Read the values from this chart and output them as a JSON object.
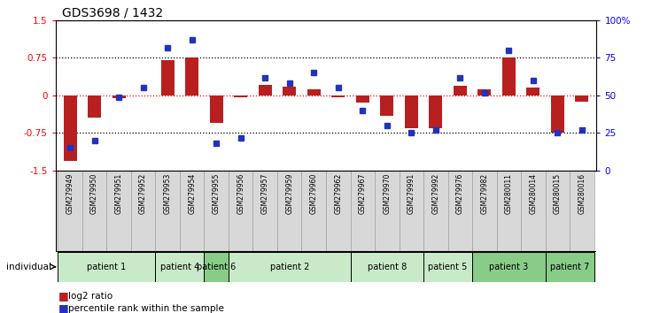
{
  "title": "GDS3698 / 1432",
  "samples": [
    "GSM279949",
    "GSM279950",
    "GSM279951",
    "GSM279952",
    "GSM279953",
    "GSM279954",
    "GSM279955",
    "GSM279956",
    "GSM279957",
    "GSM279959",
    "GSM279960",
    "GSM279962",
    "GSM279967",
    "GSM279970",
    "GSM279991",
    "GSM279992",
    "GSM279976",
    "GSM279982",
    "GSM280011",
    "GSM280014",
    "GSM280015",
    "GSM280016"
  ],
  "log2_ratio": [
    -1.3,
    -0.45,
    -0.05,
    0.0,
    0.7,
    0.75,
    -0.55,
    -0.03,
    0.22,
    0.18,
    0.12,
    -0.04,
    -0.15,
    -0.4,
    -0.65,
    -0.65,
    0.2,
    0.12,
    0.75,
    0.15,
    -0.75,
    -0.12
  ],
  "percentile": [
    15,
    20,
    49,
    55,
    82,
    87,
    18,
    22,
    62,
    58,
    65,
    55,
    40,
    30,
    25,
    27,
    62,
    52,
    80,
    60,
    25,
    27
  ],
  "patients": [
    {
      "label": "patient 1",
      "start": 0,
      "end": 4,
      "color": "#c8eac8"
    },
    {
      "label": "patient 4",
      "start": 4,
      "end": 6,
      "color": "#c8eac8"
    },
    {
      "label": "patient 6",
      "start": 6,
      "end": 7,
      "color": "#88cc88"
    },
    {
      "label": "patient 2",
      "start": 7,
      "end": 12,
      "color": "#c8eac8"
    },
    {
      "label": "patient 8",
      "start": 12,
      "end": 15,
      "color": "#c8eac8"
    },
    {
      "label": "patient 5",
      "start": 15,
      "end": 17,
      "color": "#c8eac8"
    },
    {
      "label": "patient 3",
      "start": 17,
      "end": 20,
      "color": "#88cc88"
    },
    {
      "label": "patient 7",
      "start": 20,
      "end": 22,
      "color": "#88cc88"
    }
  ],
  "bar_color": "#b82020",
  "dot_color": "#2233bb",
  "ylim_left": [
    -1.5,
    1.5
  ],
  "ylim_right": [
    0,
    100
  ],
  "yticks_left": [
    -1.5,
    -0.75,
    0.0,
    0.75,
    1.5
  ],
  "yticks_right": [
    0,
    25,
    50,
    75,
    100
  ],
  "hlines_dotted": [
    -0.75,
    0.75
  ],
  "hline_red": 0.0,
  "label_bg": "#d8d8d8"
}
